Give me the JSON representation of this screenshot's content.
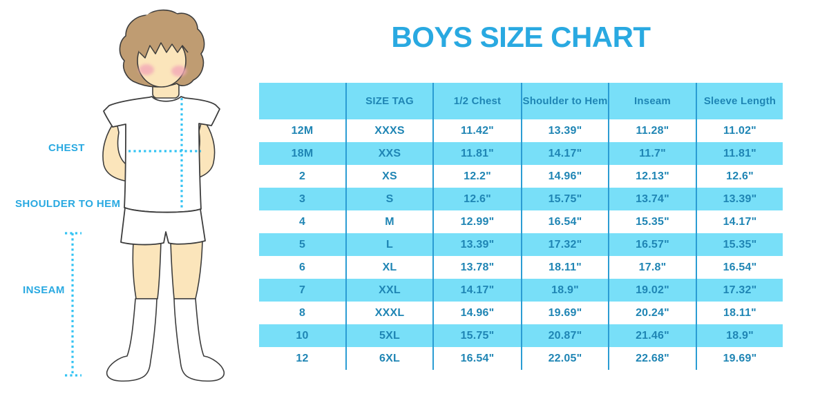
{
  "title": "BOYS SIZE CHART",
  "figure": {
    "description": "boy-in-tshirt-shorts-and-socks-measurement-diagram",
    "labels": {
      "chest": "CHEST",
      "shoulder_to_hem": "SHOULDER TO HEM",
      "inseam": "INSEAM"
    }
  },
  "table": {
    "headers": [
      "",
      "SIZE TAG",
      "1/2 Chest",
      "Shoulder to Hem",
      "Inseam",
      "Sleeve Length"
    ],
    "rows": [
      [
        "12M",
        "XXXS",
        "11.42\"",
        "13.39\"",
        "11.28\"",
        "11.02\""
      ],
      [
        "18M",
        "XXS",
        "11.81\"",
        "14.17\"",
        "11.7\"",
        "11.81\""
      ],
      [
        "2",
        "XS",
        "12.2\"",
        "14.96\"",
        "12.13\"",
        "12.6\""
      ],
      [
        "3",
        "S",
        "12.6\"",
        "15.75\"",
        "13.74\"",
        "13.39\""
      ],
      [
        "4",
        "M",
        "12.99\"",
        "16.54\"",
        "15.35\"",
        "14.17\""
      ],
      [
        "5",
        "L",
        "13.39\"",
        "17.32\"",
        "16.57\"",
        "15.35\""
      ],
      [
        "6",
        "XL",
        "13.78\"",
        "18.11\"",
        "17.8\"",
        "16.54\""
      ],
      [
        "7",
        "XXL",
        "14.17\"",
        "18.9\"",
        "19.02\"",
        "17.32\""
      ],
      [
        "8",
        "XXXL",
        "14.96\"",
        "19.69\"",
        "20.24\"",
        "18.11\""
      ],
      [
        "10",
        "5XL",
        "15.75\"",
        "20.87\"",
        "21.46\"",
        "18.9\""
      ],
      [
        "12",
        "6XL",
        "16.54\"",
        "22.05\"",
        "22.68\"",
        "19.69\""
      ]
    ]
  },
  "colors": {
    "title_and_labels": "#29A9E1",
    "stripe_cyan": "#78DFF8",
    "table_text": "#1F85B4",
    "grid_line": "#2A9CD3",
    "dotted_measure_line": "#33C3F3",
    "skin": "#FBE5BB",
    "hair": "#BF9C72",
    "blush": "#F3A9B7",
    "outline": "#3C3C3C"
  }
}
